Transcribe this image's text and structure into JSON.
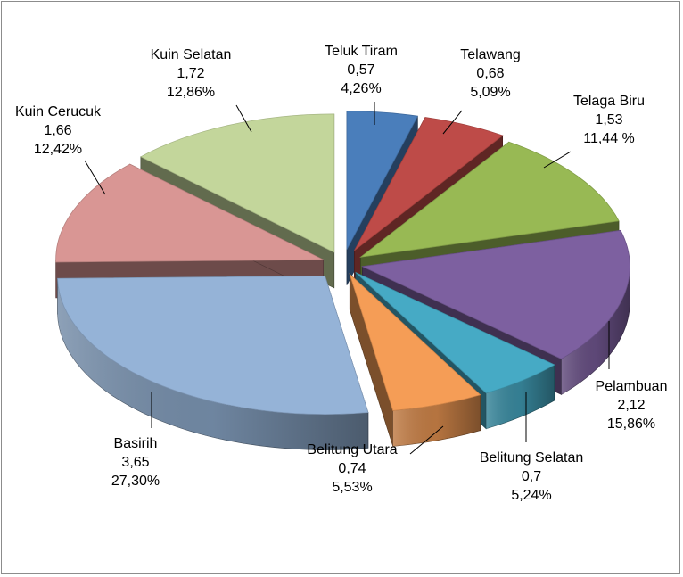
{
  "chart_data": {
    "type": "pie",
    "title": "",
    "exploded": true,
    "three_d": true,
    "categories": [
      "Teluk Tiram",
      "Telawang",
      "Telaga Biru",
      "Pelambuan",
      "Belitung Selatan",
      "Belitung Utara",
      "Basirih",
      "Kuin Cerucuk",
      "Kuin Selatan"
    ],
    "values": [
      0.57,
      0.68,
      1.53,
      2.12,
      0.7,
      0.74,
      3.65,
      1.66,
      1.72
    ],
    "value_labels": [
      "0,57",
      "0,68",
      "1,53",
      "2,12",
      "0,7",
      "0,74",
      "3,65",
      "1,66",
      "1,72"
    ],
    "percent_labels": [
      "4,26%",
      "5,09%",
      "11,44 %",
      "15,86%",
      "5,24%",
      "5,53%",
      "27,30%",
      "12,42%",
      "12,86%"
    ],
    "colors": [
      "#4a7ebb",
      "#be4b48",
      "#98b954",
      "#7d60a0",
      "#46aac5",
      "#f59d56",
      "#95b3d7",
      "#d99694",
      "#c3d69b"
    ],
    "legend": "none",
    "data_labels": "category name, value and percentage beside each slice with leader lines"
  }
}
